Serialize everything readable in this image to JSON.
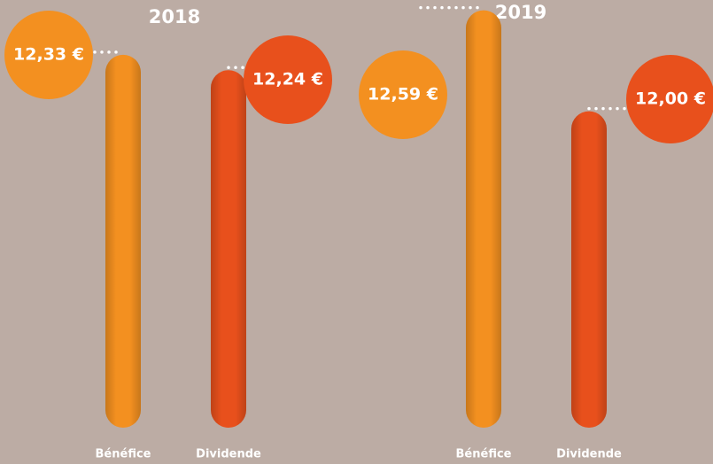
{
  "chart_data": {
    "type": "bar",
    "categories": [
      "Bénéfice",
      "Dividende"
    ],
    "colors": [
      "#f39020",
      "#e8501c"
    ],
    "series": [
      {
        "name": "2018",
        "values": [
          12.33,
          12.24
        ],
        "value_labels": [
          "12,33 €",
          "12,24 €"
        ]
      },
      {
        "name": "2019",
        "values": [
          12.59,
          12.0
        ],
        "value_labels": [
          "12,59 €",
          "12,00 €"
        ]
      }
    ],
    "ylim": [
      10.15,
      12.65
    ]
  }
}
